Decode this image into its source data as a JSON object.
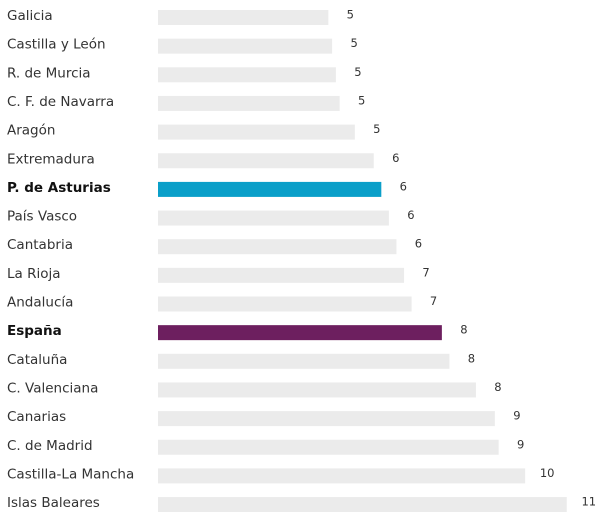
{
  "chart_data": {
    "type": "bar",
    "orientation": "horizontal",
    "categories": [
      "Galicia",
      "Castilla y León",
      "R. de Murcia",
      "C. F. de Navarra",
      "Aragón",
      "Extremadura",
      "P. de Asturias",
      "País Vasco",
      "Cantabria",
      "La Rioja",
      "Andalucía",
      "España",
      "Cataluña",
      "C. Valenciana",
      "Canarias",
      "C. de Madrid",
      "Castilla-La Mancha",
      "Islas Baleares"
    ],
    "values": [
      4.5,
      4.6,
      4.7,
      4.8,
      5.2,
      5.7,
      5.9,
      6.1,
      6.3,
      6.5,
      6.7,
      7.5,
      7.7,
      8.4,
      8.9,
      9.0,
      9.7,
      10.8
    ],
    "value_labels": [
      "5",
      "5",
      "5",
      "5",
      "5",
      "6",
      "6",
      "6",
      "6",
      "7",
      "7",
      "8",
      "8",
      "8",
      "9",
      "9",
      "10",
      "11"
    ],
    "color": "#ebebeb",
    "colors": [
      "#ebebeb",
      "#ebebeb",
      "#ebebeb",
      "#ebebeb",
      "#ebebeb",
      "#ebebeb",
      "#0a9fc9",
      "#ebebeb",
      "#ebebeb",
      "#ebebeb",
      "#ebebeb",
      "#6d1f5f",
      "#ebebeb",
      "#ebebeb",
      "#ebebeb",
      "#ebebeb",
      "#ebebeb",
      "#ebebeb"
    ]
  }
}
